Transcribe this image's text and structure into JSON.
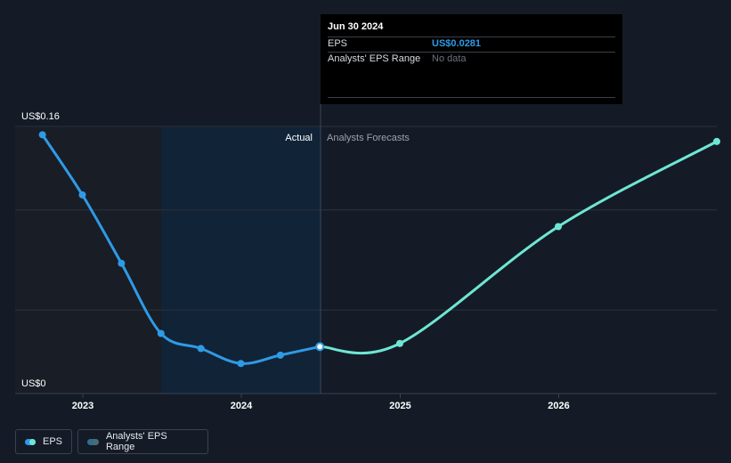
{
  "chart_data": {
    "type": "line",
    "y_labels": {
      "top": "US$0.16",
      "bottom": "US$0"
    },
    "ylim": [
      0,
      0.16
    ],
    "x_ticks": [
      "2023",
      "2024",
      "2025",
      "2026"
    ],
    "region_labels": {
      "actual": "Actual",
      "forecast": "Analysts Forecasts"
    },
    "series": [
      {
        "name": "EPS",
        "color": "#2f9ae6",
        "points": [
          {
            "x": "2022-09-30",
            "y": 0.155
          },
          {
            "x": "2022-12-31",
            "y": 0.119
          },
          {
            "x": "2023-03-31",
            "y": 0.078
          },
          {
            "x": "2023-06-30",
            "y": 0.036
          },
          {
            "x": "2023-09-30",
            "y": 0.027
          },
          {
            "x": "2023-12-31",
            "y": 0.018
          },
          {
            "x": "2024-03-31",
            "y": 0.023
          },
          {
            "x": "2024-06-30",
            "y": 0.0281
          }
        ]
      },
      {
        "name": "EPS forecast",
        "color": "#6fe6d4",
        "points": [
          {
            "x": "2024-06-30",
            "y": 0.0281
          },
          {
            "x": "2024-12-31",
            "y": 0.03
          },
          {
            "x": "2025-12-31",
            "y": 0.1
          },
          {
            "x": "2026-12-31",
            "y": 0.151
          }
        ]
      }
    ],
    "highlight": {
      "x": "2024-06-30"
    },
    "grid": true
  },
  "tooltip": {
    "date": "Jun 30 2024",
    "eps_label": "EPS",
    "eps_value": "US$0.0281",
    "range_label": "Analysts' EPS Range",
    "range_value": "No data"
  },
  "legend": {
    "eps": "EPS",
    "range": "Analysts' EPS Range"
  },
  "colors": {
    "background": "#141b26",
    "actual_shade": "#112336",
    "past_shade": "#181d26",
    "eps_line": "#2f9ae6",
    "forecast_line": "#6fe6d4",
    "grid": "#2c333e"
  }
}
